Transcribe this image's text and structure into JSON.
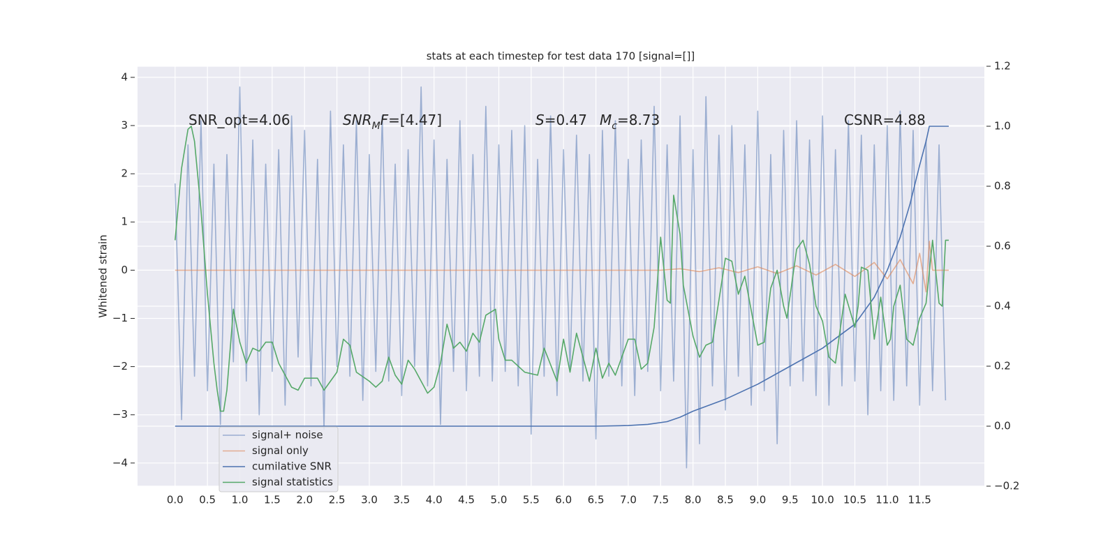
{
  "chart_data": {
    "type": "line",
    "title": "stats at each timestep for test data 170 [signal=[]]",
    "ylabel": "Whitened strain",
    "xlim": [
      -0.58,
      12.5
    ],
    "ylim": [
      -4.48,
      4.23
    ],
    "y2lim": [
      -0.2,
      1.2
    ],
    "xticks": [
      {
        "value": 0,
        "label": "0.0"
      },
      0.5,
      {
        "value": 1,
        "label": "1.0"
      },
      1.5,
      {
        "value": 2,
        "label": "2.0"
      },
      2.5,
      {
        "value": 3,
        "label": "3.0"
      },
      3.5,
      {
        "value": 4,
        "label": "4.0"
      },
      4.5,
      {
        "value": 5,
        "label": "5.0"
      },
      5.5,
      {
        "value": 6,
        "label": "6.0"
      },
      6.5,
      {
        "value": 7,
        "label": "7.0"
      },
      7.5,
      {
        "value": 8,
        "label": "8.0"
      },
      8.5,
      {
        "value": 9,
        "label": "9.0"
      },
      9.5,
      {
        "value": 10,
        "label": "10.0"
      },
      10.5,
      {
        "value": 11,
        "label": "11.0"
      },
      11.5
    ],
    "yticks": [
      {
        "value": -4,
        "label": "−4"
      },
      {
        "value": -3,
        "label": "−3"
      },
      {
        "value": -2,
        "label": "−2"
      },
      {
        "value": -1,
        "label": "−1"
      },
      0,
      1,
      2,
      3,
      4
    ],
    "y2ticks": [
      {
        "value": -0.2,
        "label": "−0.2"
      },
      {
        "value": 0,
        "label": "0.0"
      },
      0.2,
      0.4,
      0.6,
      0.8,
      {
        "value": 1,
        "label": "1.0"
      },
      1.2
    ],
    "grid": true,
    "legend": "lower left",
    "annotations": [
      [
        {
          "text": "SNR_opt=4.06",
          "style": "normal"
        }
      ],
      [
        {
          "text": "SNR",
          "style": "italic"
        },
        {
          "text": "M",
          "style": "italic-sub"
        },
        {
          "text": "F",
          "style": "italic"
        },
        {
          "text": "=[4.47]",
          "style": "normal"
        }
      ],
      [
        {
          "text": "S",
          "style": "italic"
        },
        {
          "text": "=0.47",
          "style": "normal"
        }
      ],
      [
        {
          "text": "M",
          "style": "italic"
        },
        {
          "text": "c",
          "style": "italic-sub"
        },
        {
          "text": "=8.73",
          "style": "normal"
        }
      ],
      [
        {
          "text": "CSNR=4.88",
          "style": "normal"
        }
      ]
    ],
    "series": [
      {
        "name": "signal+ noise",
        "color": "#4c72b0",
        "alpha": 0.5,
        "axis": "y",
        "x": [
          0,
          0.1,
          0.2,
          0.3,
          0.4,
          0.5,
          0.6,
          0.7,
          0.8,
          0.9,
          1,
          1.1,
          1.2,
          1.3,
          1.4,
          1.5,
          1.6,
          1.7,
          1.8,
          1.9,
          2,
          2.1,
          2.2,
          2.3,
          2.4,
          2.5,
          2.6,
          2.7,
          2.8,
          2.9,
          3,
          3.1,
          3.2,
          3.3,
          3.4,
          3.5,
          3.6,
          3.7,
          3.8,
          3.9,
          4,
          4.1,
          4.2,
          4.3,
          4.4,
          4.5,
          4.6,
          4.7,
          4.8,
          4.9,
          5,
          5.1,
          5.2,
          5.3,
          5.4,
          5.5,
          5.6,
          5.7,
          5.8,
          5.9,
          6,
          6.1,
          6.2,
          6.3,
          6.4,
          6.5,
          6.6,
          6.7,
          6.8,
          6.9,
          7,
          7.1,
          7.2,
          7.3,
          7.4,
          7.5,
          7.6,
          7.7,
          7.8,
          7.9,
          8,
          8.1,
          8.2,
          8.3,
          8.4,
          8.5,
          8.6,
          8.7,
          8.8,
          8.9,
          9,
          9.1,
          9.2,
          9.3,
          9.4,
          9.5,
          9.6,
          9.7,
          9.8,
          9.9,
          10,
          10.1,
          10.2,
          10.3,
          10.4,
          10.5,
          10.6,
          10.7,
          10.8,
          10.9,
          11,
          11.1,
          11.2,
          11.3,
          11.4,
          11.5,
          11.6,
          11.7,
          11.8,
          11.9
        ],
        "values": [
          1.8,
          -3.1,
          2.6,
          -2.2,
          3.1,
          -2.5,
          2.2,
          -3.2,
          2.4,
          -1.9,
          3.8,
          -2.3,
          2.7,
          -3.0,
          2.2,
          -2.1,
          2.5,
          -2.8,
          3.2,
          -1.8,
          2.9,
          -2.4,
          2.3,
          -3.3,
          3.3,
          -2.0,
          2.6,
          -2.2,
          3.1,
          -2.7,
          2.4,
          -2.1,
          3.2,
          -2.3,
          2.2,
          -2.6,
          2.5,
          -2.0,
          3.8,
          -2.4,
          2.7,
          -3.2,
          2.3,
          -2.1,
          3.1,
          -2.5,
          2.4,
          -2.2,
          3.4,
          -2.3,
          2.6,
          -2.1,
          2.9,
          -2.4,
          3.0,
          -3.4,
          2.3,
          -2.2,
          3.2,
          -2.6,
          2.5,
          -2.1,
          2.8,
          -2.3,
          2.4,
          -3.5,
          2.9,
          -2.2,
          3.1,
          -2.4,
          2.3,
          -2.6,
          2.7,
          -2.1,
          3.4,
          -2.5,
          2.6,
          -2.3,
          3.2,
          -4.1,
          2.5,
          -3.6,
          3.6,
          -2.4,
          2.8,
          -2.9,
          3.0,
          -2.2,
          2.6,
          -2.8,
          3.3,
          -2.5,
          2.4,
          -3.6,
          2.9,
          -2.4,
          3.1,
          -2.3,
          2.7,
          -2.6,
          3.2,
          -2.8,
          2.5,
          -2.4,
          3.1,
          -2.3,
          2.8,
          -3.0,
          2.6,
          -2.5,
          3.0,
          -2.7,
          3.3,
          -2.4,
          2.9,
          -2.8,
          2.7,
          -2.5,
          2.6,
          -2.7
        ]
      },
      {
        "name": "signal only",
        "color": "#dd8452",
        "alpha": 0.6,
        "axis": "y",
        "x": [
          0,
          7.5,
          7.8,
          8.1,
          8.4,
          8.7,
          9.0,
          9.3,
          9.6,
          9.9,
          10.2,
          10.5,
          10.8,
          11.0,
          11.2,
          11.4,
          11.5,
          11.6,
          11.65,
          11.7,
          11.95
        ],
        "values": [
          0,
          0,
          0.03,
          -0.03,
          0.05,
          -0.05,
          0.07,
          -0.07,
          0.09,
          -0.1,
          0.12,
          -0.13,
          0.16,
          -0.18,
          0.22,
          -0.28,
          0.35,
          -0.45,
          0.6,
          0,
          0
        ]
      },
      {
        "name": "cumilative SNR",
        "color": "#4c72b0",
        "alpha": 1,
        "axis": "y2",
        "x": [
          0,
          6.5,
          7.0,
          7.3,
          7.6,
          7.8,
          8.0,
          8.25,
          8.5,
          9.0,
          9.5,
          10.0,
          10.5,
          10.8,
          11.0,
          11.2,
          11.35,
          11.5,
          11.6,
          11.65,
          11.95
        ],
        "values": [
          0,
          0,
          0.002,
          0.006,
          0.015,
          0.03,
          0.05,
          0.07,
          0.09,
          0.14,
          0.2,
          0.26,
          0.34,
          0.43,
          0.52,
          0.63,
          0.74,
          0.87,
          0.95,
          1.0,
          1.0
        ]
      },
      {
        "name": "signal statistics",
        "color": "#55a868",
        "alpha": 1,
        "axis": "y2",
        "x": [
          0,
          0.1,
          0.2,
          0.25,
          0.3,
          0.4,
          0.5,
          0.6,
          0.65,
          0.7,
          0.75,
          0.8,
          0.9,
          1.0,
          1.1,
          1.2,
          1.3,
          1.4,
          1.5,
          1.6,
          1.8,
          1.9,
          2.0,
          2.1,
          2.2,
          2.3,
          2.5,
          2.6,
          2.7,
          2.8,
          3.0,
          3.1,
          3.2,
          3.3,
          3.4,
          3.5,
          3.6,
          3.7,
          3.8,
          3.9,
          4.0,
          4.1,
          4.2,
          4.3,
          4.4,
          4.5,
          4.6,
          4.7,
          4.8,
          4.95,
          5.0,
          5.1,
          5.2,
          5.4,
          5.6,
          5.7,
          5.9,
          6.0,
          6.1,
          6.2,
          6.4,
          6.5,
          6.6,
          6.7,
          6.8,
          7.0,
          7.1,
          7.2,
          7.3,
          7.4,
          7.5,
          7.6,
          7.65,
          7.7,
          7.8,
          7.85,
          8.0,
          8.1,
          8.2,
          8.3,
          8.5,
          8.6,
          8.7,
          8.8,
          9.0,
          9.1,
          9.2,
          9.3,
          9.4,
          9.45,
          9.6,
          9.7,
          9.8,
          9.9,
          10.0,
          10.1,
          10.2,
          10.35,
          10.5,
          10.55,
          10.6,
          10.7,
          10.8,
          10.9,
          11.0,
          11.05,
          11.1,
          11.2,
          11.3,
          11.4,
          11.5,
          11.6,
          11.7,
          11.8,
          11.85,
          11.9,
          11.95
        ],
        "values": [
          0.62,
          0.86,
          0.99,
          1.0,
          0.95,
          0.72,
          0.44,
          0.21,
          0.12,
          0.05,
          0.05,
          0.12,
          0.39,
          0.28,
          0.21,
          0.26,
          0.25,
          0.28,
          0.28,
          0.21,
          0.13,
          0.12,
          0.16,
          0.16,
          0.16,
          0.12,
          0.18,
          0.29,
          0.27,
          0.18,
          0.15,
          0.13,
          0.15,
          0.23,
          0.17,
          0.14,
          0.22,
          0.19,
          0.15,
          0.11,
          0.13,
          0.21,
          0.34,
          0.26,
          0.28,
          0.25,
          0.31,
          0.28,
          0.37,
          0.39,
          0.29,
          0.22,
          0.22,
          0.18,
          0.17,
          0.26,
          0.15,
          0.29,
          0.18,
          0.31,
          0.15,
          0.26,
          0.16,
          0.21,
          0.17,
          0.29,
          0.29,
          0.19,
          0.21,
          0.33,
          0.63,
          0.42,
          0.41,
          0.77,
          0.64,
          0.47,
          0.3,
          0.23,
          0.27,
          0.28,
          0.56,
          0.55,
          0.44,
          0.5,
          0.27,
          0.28,
          0.46,
          0.52,
          0.4,
          0.36,
          0.59,
          0.62,
          0.54,
          0.4,
          0.35,
          0.23,
          0.21,
          0.44,
          0.33,
          0.4,
          0.53,
          0.52,
          0.29,
          0.43,
          0.27,
          0.29,
          0.4,
          0.47,
          0.29,
          0.27,
          0.36,
          0.41,
          0.62,
          0.41,
          0.4,
          0.62,
          0.62
        ]
      }
    ]
  }
}
